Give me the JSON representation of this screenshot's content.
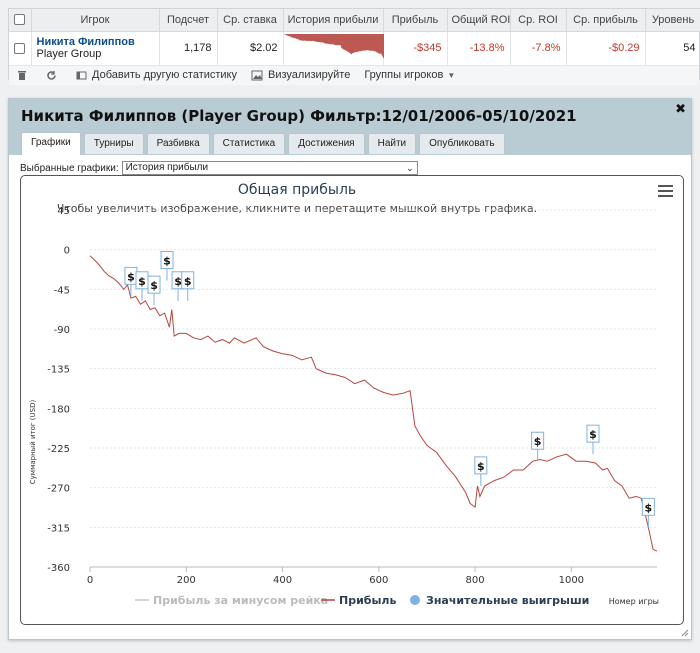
{
  "table": {
    "headers": [
      "Игрок",
      "Подсчет",
      "Ср. ставка",
      "История прибыли",
      "Прибыль",
      "Общий ROI",
      "Ср. ROI",
      "Ср. прибыль",
      "Уровень"
    ],
    "row": {
      "player_name": "Никита Филиппов",
      "player_group": "Player Group",
      "count": "1,178",
      "avg_stake": "$2.02",
      "profit": "-$345",
      "total_roi": "-13.8%",
      "avg_roi": "-7.8%",
      "avg_profit": "-$0.29",
      "level": "54"
    }
  },
  "toolbar": {
    "add_stats": "Добавить другую статистику",
    "visualize": "Визуализируйте",
    "player_groups": "Группы игроков"
  },
  "dialog": {
    "title": "Никита Филиппов (Player Group) Фильтр:12/01/2006-05/10/2021",
    "tabs": [
      "Графики",
      "Турниры",
      "Разбивка",
      "Статистика",
      "Достижения",
      "Найти",
      "Опубликовать"
    ],
    "active_tab": "Графики",
    "select_label": "Выбранные графики:",
    "select_value": "История прибыли"
  },
  "colors": {
    "accent": "#0e4c8a",
    "negative": "#c0392b",
    "profit_line": "#b5473f",
    "big_win_marker": "#7fb1e3",
    "header_bg": "#b9ccd4"
  },
  "chart_data": {
    "type": "line",
    "title": "Общая прибыль",
    "subtitle": "Чтобы увеличить изображение, кликните и перетащите мышкой внутрь графика.",
    "xlabel": "Номер игры",
    "ylabel": "Суммарный итог (USD)",
    "xlim": [
      0,
      1178
    ],
    "ylim": [
      -360,
      45
    ],
    "xticks": [
      0,
      200,
      400,
      600,
      800,
      1000
    ],
    "yticks": [
      45,
      0,
      -45,
      -90,
      -135,
      -180,
      -225,
      -270,
      -315,
      -360
    ],
    "legend": [
      "Прибыль за минусом рейка",
      "Прибыль",
      "Значительные выигрыши"
    ],
    "legend_placement": "bottom",
    "series": [
      {
        "name": "Прибыль",
        "x": [
          0,
          10,
          20,
          30,
          40,
          50,
          60,
          70,
          78,
          85,
          95,
          105,
          115,
          125,
          135,
          145,
          155,
          165,
          170,
          175,
          185,
          200,
          215,
          230,
          245,
          260,
          275,
          290,
          300,
          320,
          345,
          360,
          380,
          400,
          420,
          440,
          460,
          470,
          490,
          510,
          530,
          550,
          570,
          590,
          610,
          630,
          650,
          665,
          675,
          685,
          700,
          720,
          740,
          760,
          780,
          790,
          800,
          805,
          810,
          820,
          840,
          860,
          880,
          900,
          920,
          935,
          950,
          970,
          990,
          1010,
          1030,
          1050,
          1065,
          1075,
          1090,
          1105,
          1120,
          1135,
          1145,
          1150,
          1160,
          1170,
          1178
        ],
        "y": [
          -7,
          -12,
          -18,
          -25,
          -30,
          -33,
          -38,
          -45,
          -40,
          -55,
          -53,
          -62,
          -58,
          -68,
          -66,
          -75,
          -72,
          -88,
          -68,
          -98,
          -95,
          -95,
          -100,
          -102,
          -98,
          -105,
          -102,
          -106,
          -100,
          -106,
          -100,
          -110,
          -115,
          -118,
          -120,
          -125,
          -122,
          -135,
          -140,
          -142,
          -145,
          -152,
          -148,
          -157,
          -162,
          -165,
          -163,
          -160,
          -200,
          -210,
          -222,
          -230,
          -245,
          -258,
          -275,
          -288,
          -292,
          -268,
          -280,
          -268,
          -262,
          -258,
          -250,
          -250,
          -240,
          -238,
          -240,
          -235,
          -232,
          -240,
          -240,
          -242,
          -250,
          -248,
          -262,
          -268,
          -282,
          -280,
          -282,
          -292,
          -315,
          -340,
          -342
        ]
      }
    ],
    "big_wins": [
      {
        "x": 85,
        "y": -53
      },
      {
        "x": 108,
        "y": -58
      },
      {
        "x": 133,
        "y": -63
      },
      {
        "x": 160,
        "y": -35
      },
      {
        "x": 183,
        "y": -58
      },
      {
        "x": 203,
        "y": -58
      },
      {
        "x": 812,
        "y": -268
      },
      {
        "x": 930,
        "y": -240
      },
      {
        "x": 1045,
        "y": -232
      },
      {
        "x": 1160,
        "y": -315
      }
    ],
    "big_win_label": "$"
  }
}
